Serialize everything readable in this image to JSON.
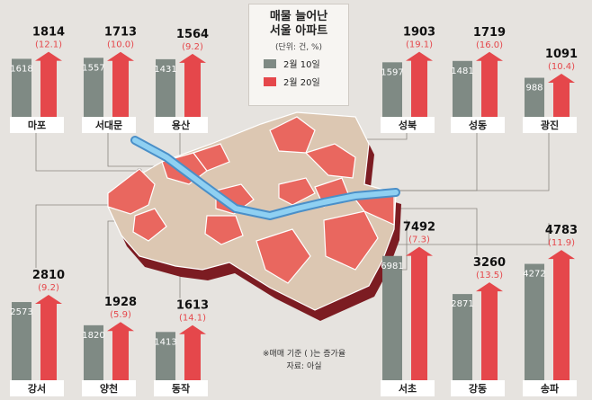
{
  "legend": {
    "title_line1": "매물 늘어난",
    "title_line2": "서울 아파트",
    "unit": "(단위: 건, %)",
    "series1": "2월 10일",
    "series2": "2월 20일"
  },
  "note": {
    "line1": "※매매 기준 ( )는 증가율",
    "line2": "자료: 아실"
  },
  "colors": {
    "before": "#7f8a84",
    "after": "#e5474b",
    "map_red": "#e9675f",
    "map_beige": "#dcc7b2",
    "river": "#6ab3e6",
    "side": "#7c1c22"
  },
  "chart_data": {
    "type": "bar",
    "title": "매물 늘어난 서울 아파트",
    "unit": "건, %",
    "series": [
      {
        "name": "2월 10일"
      },
      {
        "name": "2월 20일"
      }
    ],
    "categories": [
      "마포",
      "서대문",
      "용산",
      "성북",
      "성동",
      "광진",
      "강서",
      "양천",
      "동작",
      "서초",
      "강동",
      "송파"
    ],
    "districts": [
      {
        "name": "마포",
        "before": 1618,
        "after": 1814,
        "rate": "(12.1)"
      },
      {
        "name": "서대문",
        "before": 1557,
        "after": 1713,
        "rate": "(10.0)"
      },
      {
        "name": "용산",
        "before": 1431,
        "after": 1564,
        "rate": "(9.2)"
      },
      {
        "name": "성북",
        "before": 1597,
        "after": 1903,
        "rate": "(19.1)"
      },
      {
        "name": "성동",
        "before": 1481,
        "after": 1719,
        "rate": "(16.0)"
      },
      {
        "name": "광진",
        "before": 988,
        "after": 1091,
        "rate": "(10.4)"
      },
      {
        "name": "강서",
        "before": 2573,
        "after": 2810,
        "rate": "(9.2)"
      },
      {
        "name": "양천",
        "before": 1820,
        "after": 1928,
        "rate": "(5.9)"
      },
      {
        "name": "동작",
        "before": 1413,
        "after": 1613,
        "rate": "(14.1)"
      },
      {
        "name": "서초",
        "before": 6981,
        "after": 7492,
        "rate": "(7.3)"
      },
      {
        "name": "강동",
        "before": 2871,
        "after": 3260,
        "rate": "(13.5)"
      },
      {
        "name": "송파",
        "before": 4272,
        "after": 4783,
        "rate": "(11.9)"
      }
    ]
  }
}
